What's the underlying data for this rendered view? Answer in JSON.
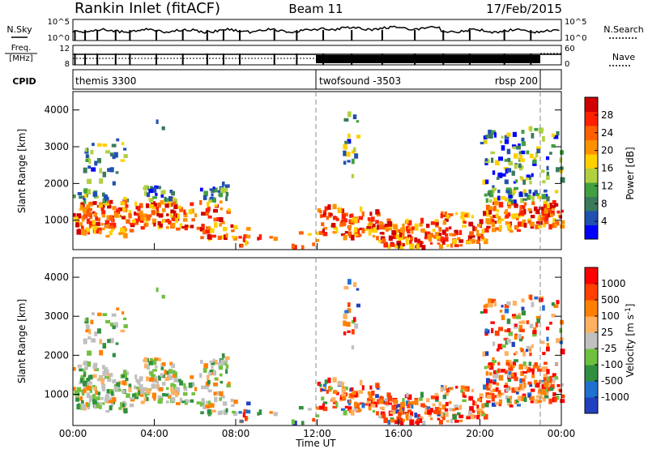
{
  "header": {
    "title": "Rankin Inlet (fitACF)",
    "beam": "Beam 11",
    "date": "17/Feb/2015"
  },
  "strips": {
    "nsky_label": "N.Sky",
    "nsearch_label": "N.Search",
    "nsky_ticks": [
      "10^5",
      "10^0"
    ],
    "nsearch_ticks": [
      "10^5",
      "10^0"
    ],
    "freq_label_1": "Freq.",
    "freq_label_2": "[MHz]",
    "freq_ticks": [
      "12",
      "8"
    ],
    "nave_label": "Nave",
    "nave_ticks": [
      "60",
      "0"
    ],
    "cpid_label": "CPID",
    "cpid_segments": [
      "themis 3300",
      "twofsound -3503",
      "rbsp 200"
    ]
  },
  "colors": {
    "power": [
      "#0000ff",
      "#2050b0",
      "#3a7a5a",
      "#40a040",
      "#b0d040",
      "#ffd000",
      "#ff9000",
      "#ff6000",
      "#ff2000",
      "#d00000"
    ],
    "velocity": [
      "#2040c0",
      "#2070d0",
      "#309040",
      "#70c040",
      "#c0c0c0",
      "#ffb060",
      "#ff8000",
      "#ff4000",
      "#ff0000"
    ]
  },
  "chart_data": [
    {
      "type": "heatmap",
      "name": "power",
      "ylabel": "Slant Range [km]",
      "yticks": [
        "4000",
        "3000",
        "2000",
        "1000"
      ],
      "ylim": [
        200,
        4500
      ],
      "xlim_hours": [
        0,
        24
      ],
      "colorbar_label": "Power [dB]",
      "colorbar_ticks": [
        "28",
        "24",
        "20",
        "16",
        "12",
        "8",
        "4"
      ],
      "colorbar_range": [
        0,
        32
      ]
    },
    {
      "type": "heatmap",
      "name": "velocity",
      "ylabel": "Slant Range [km]",
      "yticks": [
        "4000",
        "3000",
        "2000",
        "1000"
      ],
      "ylim": [
        200,
        4500
      ],
      "xlim_hours": [
        0,
        24
      ],
      "colorbar_label": "Velocity [m s^-1]",
      "colorbar_ticks": [
        "1000",
        "500",
        "100",
        "25",
        "-25",
        "-100",
        "-500",
        "-1000"
      ],
      "xticks": [
        "00:00",
        "04:00",
        "08:00",
        "12:00",
        "16:00",
        "20:00",
        "00:00"
      ],
      "xlabel": "Time UT"
    }
  ]
}
